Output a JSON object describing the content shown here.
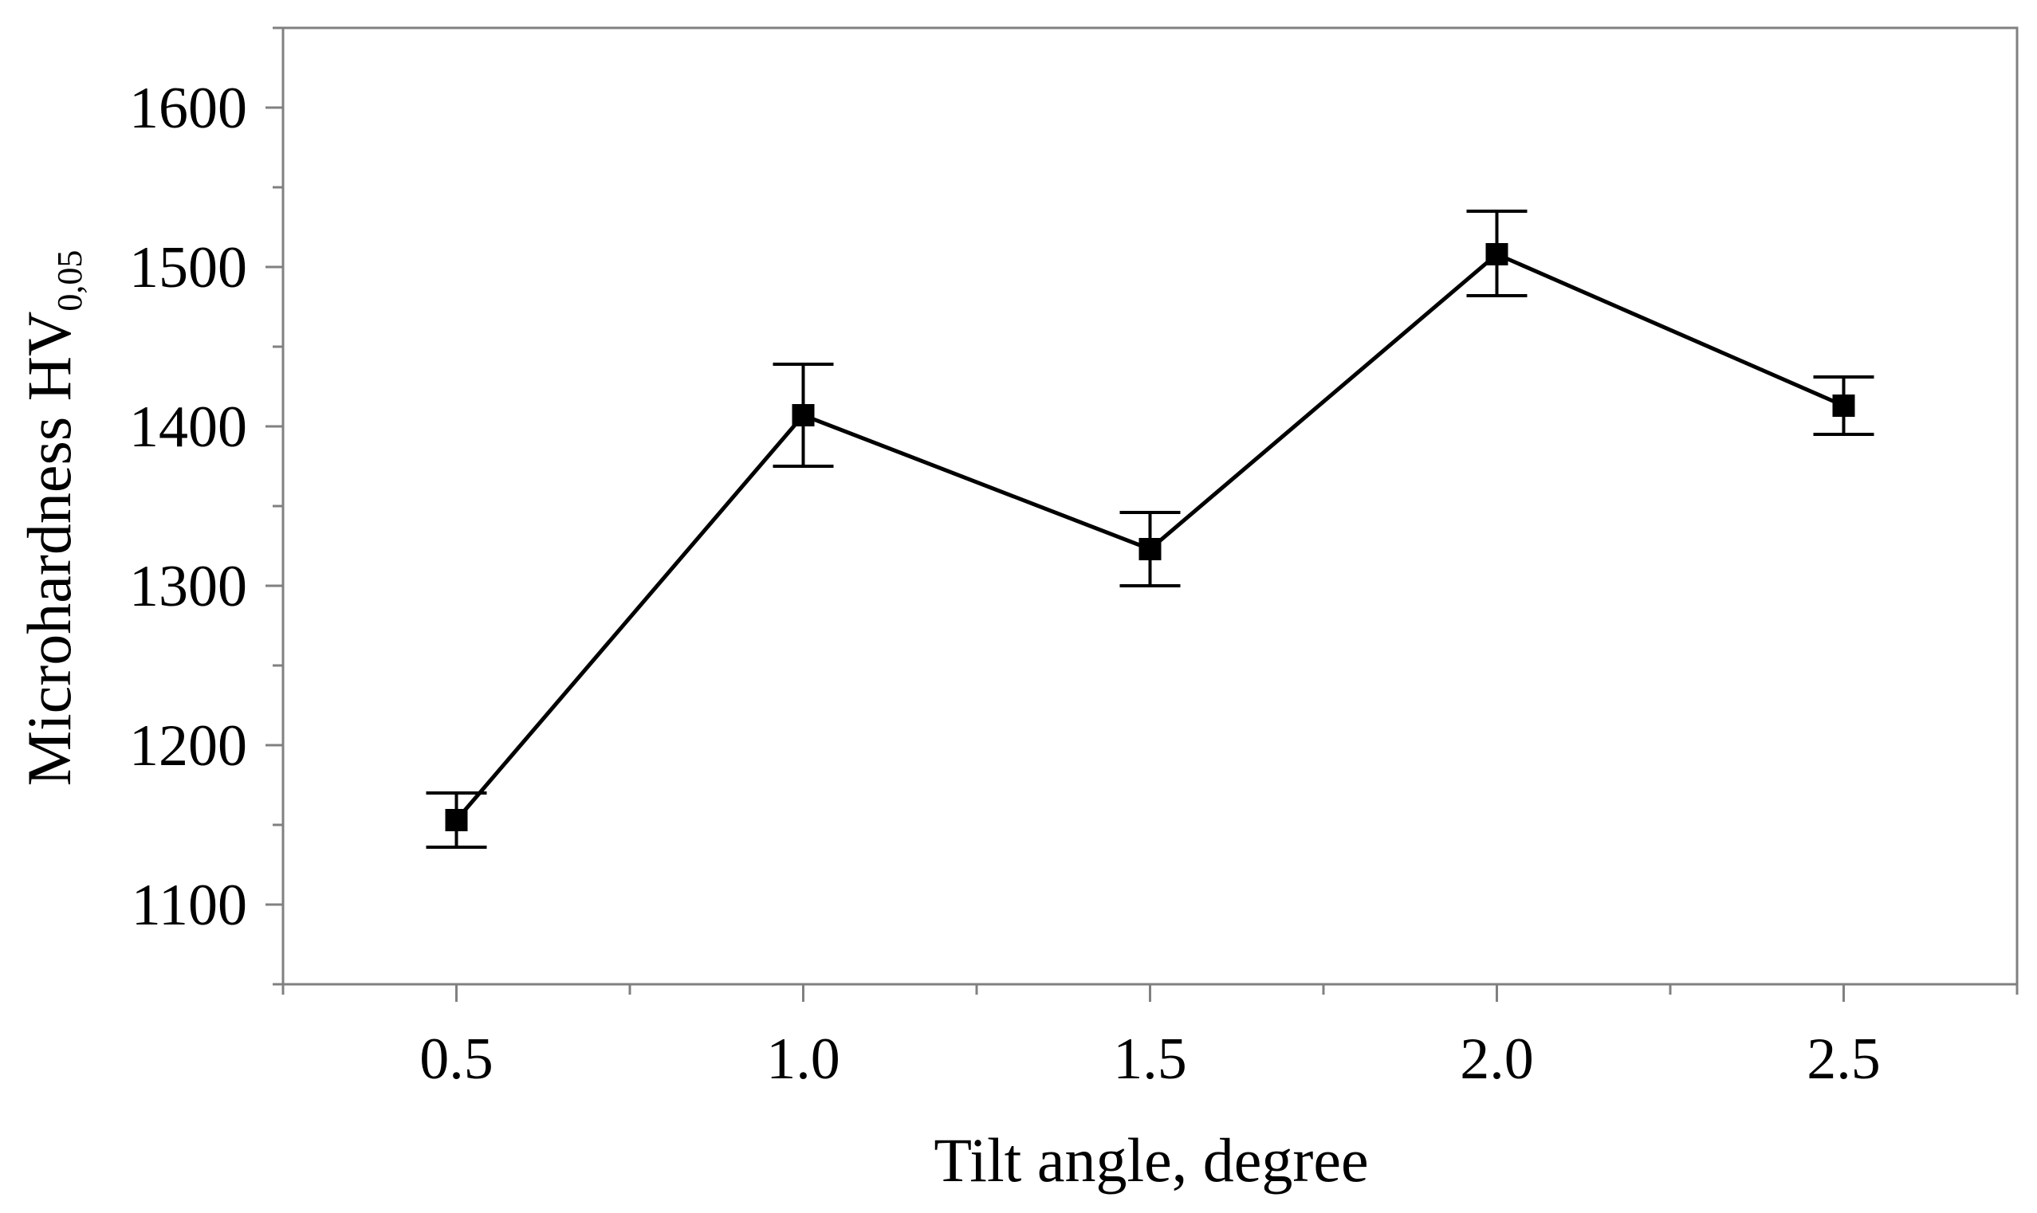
{
  "chart_data": {
    "type": "line",
    "title": "",
    "xlabel": "Tilt angle, degree",
    "ylabel_main": "Microhardness HV",
    "ylabel_subscript": "0,05",
    "x": [
      0.5,
      1.0,
      1.5,
      2.0,
      2.5
    ],
    "x_tick_labels": [
      "0.5",
      "1.0",
      "1.5",
      "2.0",
      "2.5"
    ],
    "xlim": [
      0.25,
      2.75
    ],
    "ylim": [
      1050,
      1650
    ],
    "y_ticks": [
      1100,
      1200,
      1300,
      1400,
      1500,
      1600
    ],
    "y_tick_labels": [
      "1100",
      "1200",
      "1300",
      "1400",
      "1500",
      "1600"
    ],
    "series": [
      {
        "name": "Microhardness",
        "values": [
          1153,
          1407,
          1323,
          1508,
          1413
        ],
        "error_low": [
          1136,
          1375,
          1300,
          1482,
          1395
        ],
        "error_high": [
          1170,
          1439,
          1346,
          1535,
          1431
        ],
        "marker": "square",
        "color": "#000000"
      }
    ],
    "grid": false,
    "legend": "none"
  }
}
